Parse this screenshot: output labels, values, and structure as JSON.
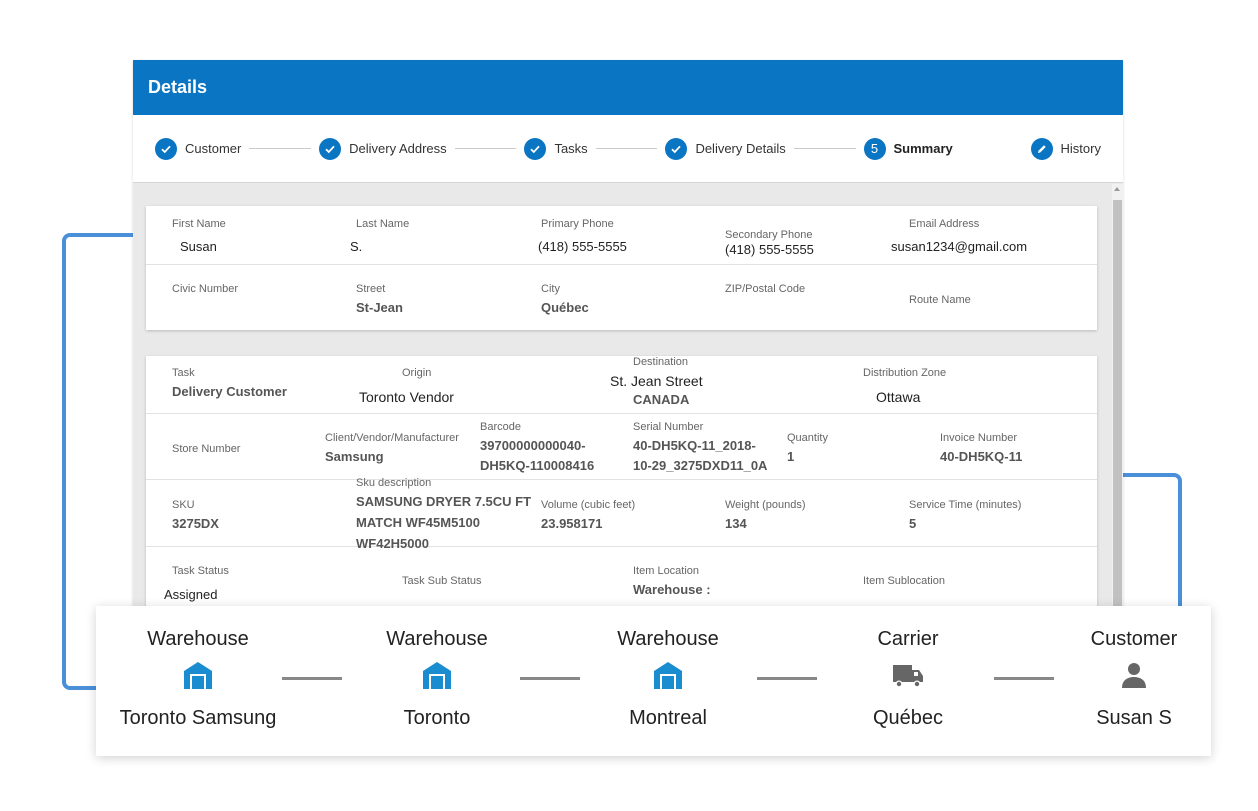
{
  "header": {
    "title": "Details"
  },
  "steps": [
    {
      "label": "Customer",
      "icon": "check-icon"
    },
    {
      "label": "Delivery Address",
      "icon": "check-icon"
    },
    {
      "label": "Tasks",
      "icon": "check-icon"
    },
    {
      "label": "Delivery Details",
      "icon": "check-icon"
    },
    {
      "label": "Summary",
      "number": "5",
      "active": true
    },
    {
      "label": "History",
      "icon": "edit-icon"
    }
  ],
  "customer": {
    "first_name": {
      "label": "First Name",
      "value": "Susan"
    },
    "last_name": {
      "label": "Last Name",
      "value": "S."
    },
    "primary_phone": {
      "label": "Primary Phone",
      "value": "(418) 555-5555"
    },
    "secondary_phone": {
      "label": "Secondary Phone",
      "value": "(418) 555-5555"
    },
    "email": {
      "label": "Email Address",
      "value": "susan1234@gmail.com"
    },
    "civic_number": {
      "label": "Civic Number",
      "value": ""
    },
    "street": {
      "label": "Street",
      "value": "St-Jean"
    },
    "city": {
      "label": "City",
      "value": "Québec"
    },
    "zip": {
      "label": "ZIP/Postal Code",
      "value": ""
    },
    "route_name": {
      "label": "Route Name",
      "value": ""
    }
  },
  "task": {
    "task": {
      "label": "Task",
      "value": "Delivery Customer"
    },
    "origin": {
      "label": "Origin",
      "value": "Toronto Vendor"
    },
    "destination": {
      "label": "Destination",
      "value": "St. Jean Street",
      "value2": "CANADA"
    },
    "distribution_zone": {
      "label": "Distribution Zone",
      "value": "Ottawa"
    },
    "store_number": {
      "label": "Store Number",
      "value": ""
    },
    "client": {
      "label": "Client/Vendor/Manufacturer",
      "value": "Samsung"
    },
    "barcode": {
      "label": "Barcode",
      "value": "39700000000040-",
      "value2": "DH5KQ-110008416"
    },
    "serial": {
      "label": "Serial Number",
      "value": "40-DH5KQ-11_2018-",
      "value2": "10-29_3275DXD11_0A"
    },
    "quantity": {
      "label": "Quantity",
      "value": "1"
    },
    "invoice": {
      "label": "Invoice Number",
      "value": "40-DH5KQ-11"
    },
    "sku": {
      "label": "SKU",
      "value": "3275DX"
    },
    "sku_description": {
      "label": "Sku description",
      "line1": "SAMSUNG DRYER 7.5CU FT",
      "line2": "MATCH WF45M5100",
      "line3": "WF42H5000"
    },
    "volume": {
      "label": "Volume (cubic feet)",
      "value": "23.958171"
    },
    "weight": {
      "label": "Weight (pounds)",
      "value": "134"
    },
    "service_time": {
      "label": "Service Time (minutes)",
      "value": "5"
    },
    "task_status": {
      "label": "Task Status",
      "value": "Assigned"
    },
    "task_sub_status": {
      "label": "Task Sub Status",
      "value": ""
    },
    "item_location": {
      "label": "Item Location",
      "value": "Warehouse :"
    },
    "item_sublocation": {
      "label": "Item Sublocation",
      "value": ""
    }
  },
  "route": [
    {
      "type": "Warehouse",
      "name": "Toronto Samsung",
      "icon": "warehouse-icon",
      "color": "#1a8cd0"
    },
    {
      "type": "Warehouse",
      "name": "Toronto",
      "icon": "warehouse-icon",
      "color": "#1a8cd0"
    },
    {
      "type": "Warehouse",
      "name": "Montreal",
      "icon": "warehouse-icon",
      "color": "#1a8cd0"
    },
    {
      "type": "Carrier",
      "name": "Québec",
      "icon": "truck-icon",
      "color": "#666666"
    },
    {
      "type": "Customer",
      "name": "Susan S",
      "icon": "person-icon",
      "color": "#666666"
    }
  ],
  "colors": {
    "primary": "#0a75c2",
    "accent": "#4a90d9"
  }
}
